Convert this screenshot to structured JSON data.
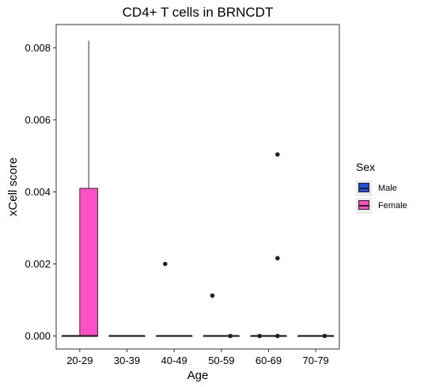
{
  "chart_data": {
    "type": "box",
    "title": "CD4+ T cells in BRNCDT",
    "xlabel": "Age",
    "ylabel": "xCell score",
    "categories": [
      "20-29",
      "30-39",
      "40-49",
      "50-59",
      "60-69",
      "70-79"
    ],
    "yticks": [
      "0.000",
      "0.002",
      "0.004",
      "0.006",
      "0.008"
    ],
    "ylim": [
      -0.0002,
      0.0086
    ],
    "legend": {
      "title": "Sex",
      "position": "right"
    },
    "series": [
      {
        "name": "Male",
        "color": "#1f4fe0",
        "boxes": [
          {
            "category": "20-29",
            "min": 0,
            "q1": 0,
            "median": 0,
            "q3": 0,
            "max": 0,
            "outliers": []
          },
          {
            "category": "30-39",
            "min": 0,
            "q1": 0,
            "median": 0,
            "q3": 0,
            "max": 0,
            "outliers": []
          },
          {
            "category": "40-49",
            "min": 0,
            "q1": 0,
            "median": 0,
            "q3": 0,
            "max": 0,
            "outliers": [
              0.002
            ]
          },
          {
            "category": "50-59",
            "min": 0,
            "q1": 0,
            "median": 0,
            "q3": 0,
            "max": 0,
            "outliers": [
              0.00112
            ]
          },
          {
            "category": "60-69",
            "min": 0,
            "q1": 0,
            "median": 0,
            "q3": 0,
            "max": 0,
            "outliers": [
              0.0
            ]
          },
          {
            "category": "70-79",
            "min": 0,
            "q1": 0,
            "median": 0,
            "q3": 0,
            "max": 0,
            "outliers": []
          }
        ]
      },
      {
        "name": "Female",
        "color": "#ff4fc6",
        "boxes": [
          {
            "category": "20-29",
            "min": 0,
            "q1": 0,
            "median": 0,
            "q3": 0.0041,
            "max": 0.0082,
            "outliers": []
          },
          {
            "category": "30-39",
            "min": 0,
            "q1": 0,
            "median": 0,
            "q3": 0,
            "max": 0,
            "outliers": []
          },
          {
            "category": "40-49",
            "min": 0,
            "q1": 0,
            "median": 0,
            "q3": 0,
            "max": 0,
            "outliers": []
          },
          {
            "category": "50-59",
            "min": 0,
            "q1": 0,
            "median": 0,
            "q3": 0,
            "max": 0,
            "outliers": [
              0.0
            ]
          },
          {
            "category": "60-69",
            "min": 0,
            "q1": 0,
            "median": 0,
            "q3": 0,
            "max": 0,
            "outliers": [
              0.00504,
              0.00216,
              0.0
            ]
          },
          {
            "category": "70-79",
            "min": 0,
            "q1": 0,
            "median": 0,
            "q3": 0,
            "max": 0,
            "outliers": [
              0.0
            ]
          }
        ]
      }
    ]
  }
}
